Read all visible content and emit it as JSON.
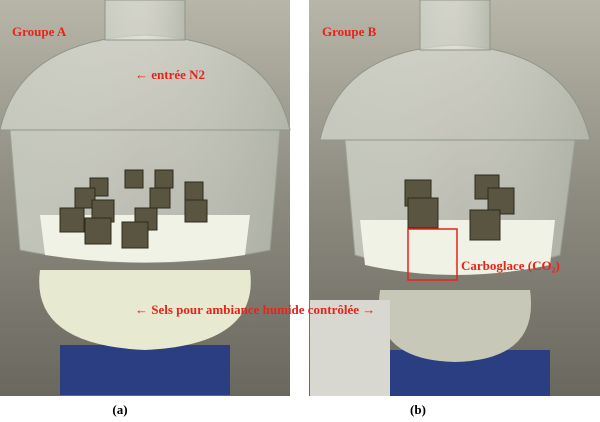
{
  "panels": [
    {
      "label": "Groupe A",
      "caption": "(a)"
    },
    {
      "label": "Groupe B",
      "caption": "(b)"
    }
  ],
  "annotations": {
    "inlet": "← entrée N2",
    "dry_ice": "Carboglace (CO₂)",
    "salts": "← Sels pour ambiance humide contrôlée →"
  }
}
